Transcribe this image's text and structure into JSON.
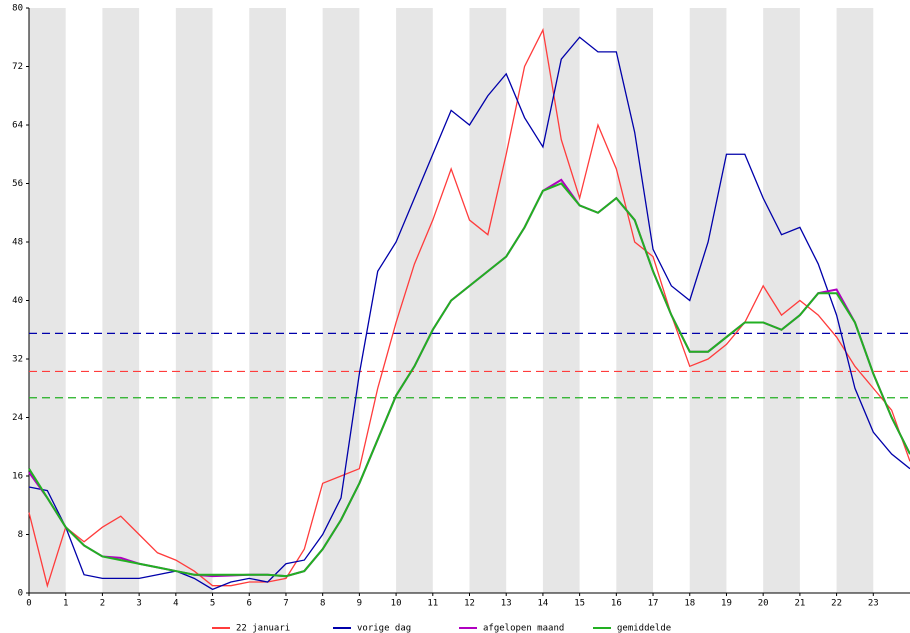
{
  "chart_data": {
    "type": "line",
    "x": [
      0,
      0.5,
      1,
      1.5,
      2,
      2.5,
      3,
      3.5,
      4,
      4.5,
      5,
      5.5,
      6,
      6.5,
      7,
      7.5,
      8,
      8.5,
      9,
      9.5,
      10,
      10.5,
      11,
      11.5,
      12,
      12.5,
      13,
      13.5,
      14,
      14.5,
      15,
      15.5,
      16,
      16.5,
      17,
      17.5,
      18,
      18.5,
      19,
      19.5,
      20,
      20.5,
      21,
      21.5,
      22,
      22.5,
      23,
      23.5,
      24
    ],
    "series": [
      {
        "name": "22 januari",
        "color": "#ff3c3c",
        "values": [
          11,
          1,
          9,
          7,
          9,
          10.5,
          8,
          5.5,
          4.5,
          3,
          1,
          1,
          1.5,
          1.5,
          2,
          6,
          15,
          16,
          17,
          28,
          37,
          45,
          51,
          58,
          51,
          49,
          60,
          72,
          77,
          62,
          54,
          64,
          58,
          48,
          46,
          38,
          31,
          32,
          34,
          37,
          42,
          38,
          40,
          38,
          35,
          31,
          28,
          25,
          18
        ]
      },
      {
        "name": "vorige dag",
        "color": "#0000aa",
        "values": [
          14.5,
          14,
          9,
          2.5,
          2,
          2,
          2,
          2.5,
          3,
          2,
          0.5,
          1.5,
          2,
          1.5,
          4,
          4.5,
          8,
          13,
          30,
          44,
          48,
          54,
          60,
          66,
          64,
          68,
          71,
          65,
          61,
          73,
          76,
          74,
          74,
          63,
          47,
          42,
          40,
          48,
          60,
          60,
          54,
          49,
          50,
          45,
          38,
          28,
          22,
          19,
          17
        ]
      },
      {
        "name": "afgelopen maand",
        "color": "#b000c0",
        "values": [
          16.5,
          13,
          9,
          6.5,
          5,
          4.8,
          4,
          3.5,
          3,
          2.5,
          2.3,
          2.4,
          2.5,
          2.5,
          2.3,
          3,
          6,
          10,
          15,
          21,
          27,
          31,
          36,
          40,
          42,
          44,
          46,
          50,
          55,
          56.5,
          53,
          52,
          54,
          51,
          44,
          38,
          33,
          33,
          35,
          37,
          37,
          36,
          38,
          41,
          41.5,
          37,
          30,
          24,
          19
        ]
      },
      {
        "name": "gemiddelde",
        "color": "#22b022",
        "values": [
          17,
          13,
          9,
          6.5,
          5,
          4.5,
          4,
          3.5,
          3,
          2.5,
          2.5,
          2.5,
          2.5,
          2.5,
          2.3,
          3,
          6,
          10,
          15,
          21,
          27,
          31,
          36,
          40,
          42,
          44,
          46,
          50,
          55,
          56,
          53,
          52,
          54,
          51,
          44,
          38,
          33,
          33,
          35,
          37,
          37,
          36,
          38,
          41,
          41,
          37,
          30,
          24,
          19
        ]
      }
    ],
    "reference_lines": [
      {
        "value": 35.5,
        "color": "#0000aa"
      },
      {
        "value": 30.3,
        "color": "#ff3c3c"
      },
      {
        "value": 26.7,
        "color": "#22b022"
      }
    ],
    "xlim": [
      0,
      24
    ],
    "xticks": [
      0,
      1,
      2,
      3,
      4,
      5,
      6,
      7,
      8,
      9,
      10,
      11,
      12,
      13,
      14,
      15,
      16,
      17,
      18,
      19,
      20,
      21,
      22,
      23
    ],
    "ylim": [
      0,
      80
    ],
    "yticks": [
      0,
      8,
      16,
      24,
      32,
      40,
      48,
      56,
      64,
      72,
      80
    ]
  }
}
